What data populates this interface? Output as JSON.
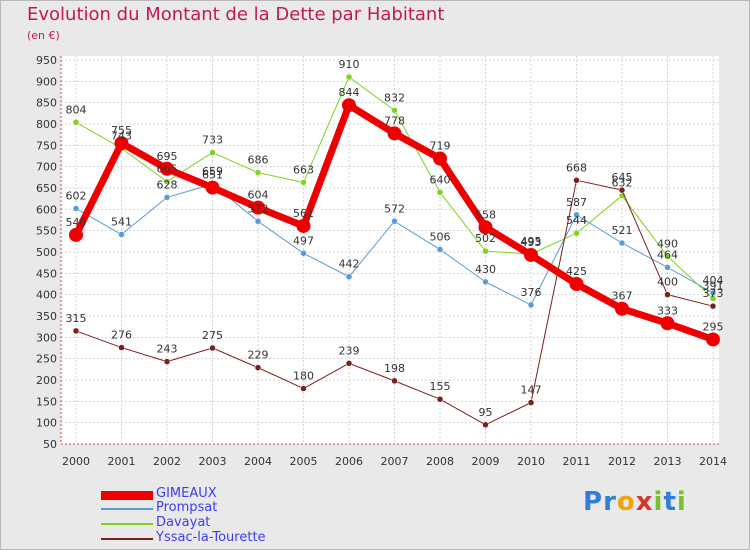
{
  "title": "Evolution du Montant de la Dette par Habitant",
  "unit": "(en €)",
  "brand": {
    "letters": [
      "P",
      "r",
      "o",
      "x",
      "i",
      "t",
      "i"
    ],
    "colors": [
      "#2f7fd8",
      "#2f7fd8",
      "#f2a20c",
      "#d9342b",
      "#7cbf2a",
      "#2f7fd8",
      "#7cbf2a"
    ]
  },
  "chart_data": {
    "type": "line",
    "x": [
      2000,
      2001,
      2002,
      2003,
      2004,
      2005,
      2006,
      2007,
      2008,
      2009,
      2010,
      2011,
      2012,
      2013,
      2014
    ],
    "ylim": [
      50,
      950
    ],
    "yticks": [
      50,
      100,
      150,
      200,
      250,
      300,
      350,
      400,
      450,
      500,
      550,
      600,
      650,
      700,
      750,
      800,
      850,
      900,
      950
    ],
    "grid": true,
    "series": [
      {
        "name": "GIMEAUX",
        "color": "#ee0000",
        "width": 7,
        "marker": 7,
        "values": [
          540,
          755,
          695,
          651,
          604,
          561,
          844,
          778,
          719,
          558,
          493,
          425,
          367,
          333,
          295
        ],
        "labels": [
          "540",
          "755",
          "695",
          "651",
          "604",
          "561",
          "844",
          "778",
          "719",
          "558",
          "493",
          "425",
          "367",
          "333",
          "295"
        ]
      },
      {
        "name": "Prompsat",
        "color": "#5b9bd5",
        "width": 1,
        "marker": 3,
        "values": [
          602,
          541,
          628,
          659,
          572,
          497,
          442,
          572,
          506,
          430,
          376,
          587,
          521,
          464,
          404
        ],
        "labels": [
          "602",
          "541",
          "628",
          "659",
          "572",
          "497",
          "442",
          "572",
          "506",
          "430",
          "376",
          "587",
          "521",
          "464",
          "404"
        ]
      },
      {
        "name": "Davayat",
        "color": "#7ed321",
        "width": 1,
        "marker": 3,
        "values": [
          804,
          743,
          665,
          733,
          686,
          663,
          910,
          832,
          640,
          502,
          495,
          544,
          632,
          490,
          391
        ],
        "labels": [
          "804",
          "743",
          "665",
          "733",
          "686",
          "663",
          "910",
          "832",
          "640",
          "502",
          "495",
          "544",
          "632",
          "490",
          "391"
        ]
      },
      {
        "name": "Yssac-la-Tourette",
        "color": "#7b1f1f",
        "width": 1,
        "marker": 3,
        "values": [
          315,
          276,
          243,
          275,
          229,
          180,
          239,
          198,
          155,
          95,
          147,
          668,
          645,
          400,
          373
        ],
        "labels": [
          "315",
          "276",
          "243",
          "275",
          "229",
          "180",
          "239",
          "198",
          "155",
          "95",
          "147",
          "668",
          "645",
          "400",
          "373"
        ]
      }
    ]
  }
}
